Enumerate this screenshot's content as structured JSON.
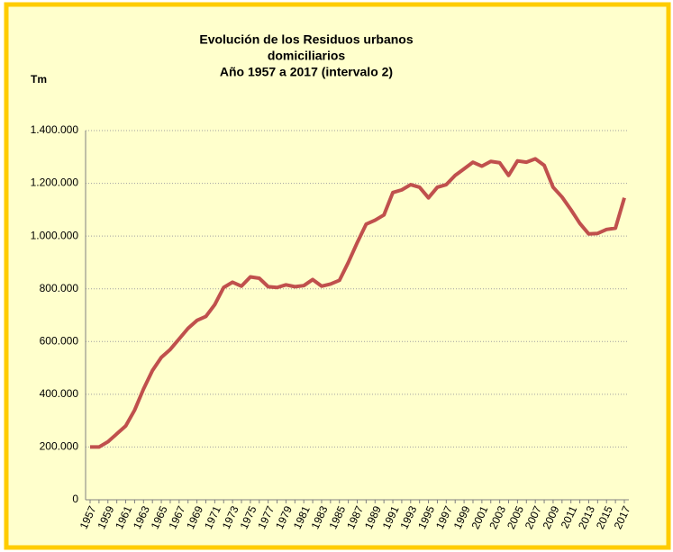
{
  "chart_data": {
    "type": "line",
    "title": [
      "Evolución de los Residuos urbanos",
      "domiciliarios",
      "Año 1957 a 2017 (intervalo 2)"
    ],
    "ylabel": "Tm",
    "categories": [
      "1957",
      null,
      "1959",
      null,
      "1961",
      null,
      "1963",
      null,
      "1965",
      null,
      "1967",
      null,
      "1969",
      null,
      "1971",
      null,
      "1973",
      null,
      "1975",
      null,
      "1977",
      null,
      "1979",
      null,
      "1981",
      null,
      "1983",
      null,
      "1985",
      null,
      "1987",
      null,
      "1989",
      null,
      "1991",
      null,
      "1993",
      null,
      "1995",
      null,
      "1997",
      null,
      "1999",
      null,
      "2001",
      null,
      "2003",
      null,
      "2005",
      null,
      "2007",
      null,
      "2009",
      null,
      "2011",
      null,
      "2013",
      null,
      "2015",
      null,
      "2017"
    ],
    "series": [
      {
        "color": "#c0504d",
        "values": [
          200000,
          200000,
          220000,
          250000,
          280000,
          340000,
          420000,
          490000,
          540000,
          570000,
          610000,
          650000,
          680000,
          695000,
          740000,
          805000,
          825000,
          810000,
          845000,
          840000,
          808000,
          805000,
          815000,
          808000,
          812000,
          835000,
          810000,
          818000,
          832000,
          900000,
          975000,
          1045000,
          1060000,
          1080000,
          1165000,
          1175000,
          1195000,
          1185000,
          1145000,
          1185000,
          1195000,
          1230000,
          1255000,
          1280000,
          1265000,
          1283000,
          1278000,
          1230000,
          1285000,
          1280000,
          1293000,
          1268000,
          1185000,
          1148000,
          1100000,
          1048000,
          1008000,
          1010000,
          1025000,
          1030000,
          1145000
        ]
      }
    ],
    "ylim": [
      0,
      1400000
    ],
    "yticks": [
      0,
      {
        "value": 200000,
        "label": "200.000"
      },
      {
        "value": 400000,
        "label": "400.000"
      },
      {
        "value": 600000,
        "label": "600.000"
      },
      {
        "value": 800000,
        "label": "800.000"
      },
      {
        "value": 1000000,
        "label": "1.000.000"
      },
      {
        "value": 1200000,
        "label": "1.200.000"
      },
      {
        "value": 1400000,
        "label": "1.400.000"
      }
    ],
    "grid": true
  }
}
